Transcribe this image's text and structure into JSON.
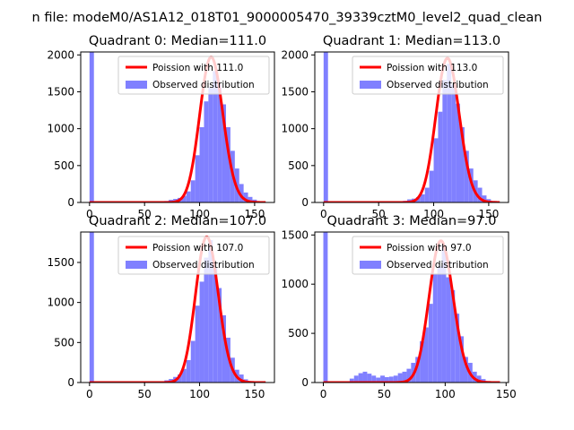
{
  "figure": {
    "suptitle": "n file: modeM0/AS1A12_018T01_9000005470_39339cztM0_level2_quad_clean"
  },
  "colors": {
    "histogram": "#8080ff",
    "poisson": "#ff0000",
    "background": "#ffffff"
  },
  "chart_data": [
    {
      "type": "bar",
      "title": "Quadrant 0: Median=111.0",
      "xlabel": "",
      "ylabel": "",
      "xlim": [
        -8,
        168
      ],
      "ylim": [
        0,
        2040
      ],
      "xticks": [
        0,
        50,
        100,
        150
      ],
      "yticks": [
        0,
        500,
        1000,
        1500,
        2000
      ],
      "grid": false,
      "legend": {
        "position": "top-right",
        "entries": [
          "Poission with 111.0",
          "Observed distribution"
        ]
      },
      "series": [
        {
          "name": "Observed distribution",
          "kind": "histogram",
          "bin_width": 4,
          "bins": [
            [
              0,
              2040
            ],
            [
              44,
              3
            ],
            [
              48,
              3
            ],
            [
              52,
              4
            ],
            [
              56,
              5
            ],
            [
              60,
              7
            ],
            [
              64,
              10
            ],
            [
              68,
              20
            ],
            [
              72,
              36
            ],
            [
              76,
              48
            ],
            [
              80,
              62
            ],
            [
              84,
              90
            ],
            [
              88,
              150
            ],
            [
              92,
              300
            ],
            [
              96,
              640
            ],
            [
              100,
              1020
            ],
            [
              104,
              1370
            ],
            [
              108,
              1560
            ],
            [
              112,
              1780
            ],
            [
              116,
              1600
            ],
            [
              120,
              1330
            ],
            [
              124,
              1020
            ],
            [
              128,
              700
            ],
            [
              132,
              460
            ],
            [
              136,
              250
            ],
            [
              140,
              135
            ],
            [
              144,
              75
            ],
            [
              148,
              38
            ],
            [
              152,
              18
            ],
            [
              156,
              8
            ]
          ]
        },
        {
          "name": "Poission with 111.0",
          "kind": "poisson-curve",
          "mean": 111.0,
          "scale": 1970,
          "x_range": [
            0,
            160
          ]
        }
      ]
    },
    {
      "type": "bar",
      "title": "Quadrant 1: Median=113.0",
      "xlabel": "",
      "ylabel": "",
      "xlim": [
        -8,
        168
      ],
      "ylim": [
        0,
        2040
      ],
      "xticks": [
        0,
        50,
        100,
        150
      ],
      "yticks": [
        0,
        500,
        1000,
        1500,
        2000
      ],
      "grid": false,
      "legend": {
        "position": "top-right",
        "entries": [
          "Poission with 113.0",
          "Observed distribution"
        ]
      },
      "series": [
        {
          "name": "Observed distribution",
          "kind": "histogram",
          "bin_width": 4,
          "bins": [
            [
              0,
              2040
            ],
            [
              52,
              3
            ],
            [
              56,
              4
            ],
            [
              60,
              6
            ],
            [
              64,
              8
            ],
            [
              68,
              12
            ],
            [
              72,
              22
            ],
            [
              76,
              42
            ],
            [
              80,
              52
            ],
            [
              84,
              72
            ],
            [
              88,
              110
            ],
            [
              92,
              200
            ],
            [
              96,
              430
            ],
            [
              100,
              870
            ],
            [
              104,
              1230
            ],
            [
              108,
              1660
            ],
            [
              112,
              1880
            ],
            [
              116,
              1600
            ],
            [
              120,
              1340
            ],
            [
              124,
              1020
            ],
            [
              128,
              700
            ],
            [
              132,
              460
            ],
            [
              136,
              300
            ],
            [
              140,
              200
            ],
            [
              144,
              95
            ],
            [
              148,
              45
            ],
            [
              152,
              20
            ],
            [
              156,
              8
            ]
          ]
        },
        {
          "name": "Poission with 113.0",
          "kind": "poisson-curve",
          "mean": 113.0,
          "scale": 1955,
          "x_range": [
            0,
            160
          ]
        }
      ]
    },
    {
      "type": "bar",
      "title": "Quadrant 2: Median=107.0",
      "xlabel": "",
      "ylabel": "",
      "xlim": [
        -8,
        168
      ],
      "ylim": [
        0,
        1880
      ],
      "xticks": [
        0,
        50,
        100,
        150
      ],
      "yticks": [
        0,
        500,
        1000,
        1500
      ],
      "grid": false,
      "legend": {
        "position": "top-right",
        "entries": [
          "Poission with 107.0",
          "Observed distribution"
        ]
      },
      "series": [
        {
          "name": "Observed distribution",
          "kind": "histogram",
          "bin_width": 4,
          "bins": [
            [
              0,
              1880
            ],
            [
              40,
              3
            ],
            [
              44,
              4
            ],
            [
              48,
              4
            ],
            [
              52,
              5
            ],
            [
              56,
              6
            ],
            [
              60,
              8
            ],
            [
              64,
              12
            ],
            [
              68,
              28
            ],
            [
              72,
              44
            ],
            [
              76,
              70
            ],
            [
              80,
              100
            ],
            [
              84,
              170
            ],
            [
              88,
              280
            ],
            [
              92,
              520
            ],
            [
              96,
              960
            ],
            [
              100,
              1260
            ],
            [
              104,
              1560
            ],
            [
              108,
              1780
            ],
            [
              112,
              1440
            ],
            [
              116,
              1180
            ],
            [
              120,
              840
            ],
            [
              124,
              560
            ],
            [
              128,
              310
            ],
            [
              132,
              160
            ],
            [
              136,
              100
            ],
            [
              140,
              40
            ],
            [
              144,
              18
            ],
            [
              148,
              8
            ]
          ]
        },
        {
          "name": "Poission with 107.0",
          "kind": "poisson-curve",
          "mean": 107.0,
          "scale": 1820,
          "x_range": [
            0,
            160
          ]
        }
      ]
    },
    {
      "type": "bar",
      "title": "Quadrant 3: Median=97.0",
      "xlabel": "",
      "ylabel": "",
      "xlim": [
        -7,
        152
      ],
      "ylim": [
        0,
        1530
      ],
      "xticks": [
        0,
        50,
        100,
        150
      ],
      "yticks": [
        0,
        500,
        1000,
        1500
      ],
      "grid": false,
      "legend": {
        "position": "top-right",
        "entries": [
          "Poission with 97.0",
          "Observed distribution"
        ]
      },
      "series": [
        {
          "name": "Observed distribution",
          "kind": "histogram",
          "bin_width": 3.6,
          "bins": [
            [
              0,
              1530
            ],
            [
              21.6,
              40
            ],
            [
              25.2,
              70
            ],
            [
              28.8,
              95
            ],
            [
              32.4,
              110
            ],
            [
              36,
              90
            ],
            [
              39.6,
              70
            ],
            [
              43.2,
              50
            ],
            [
              46.8,
              70
            ],
            [
              50.4,
              55
            ],
            [
              54,
              60
            ],
            [
              57.6,
              70
            ],
            [
              61.2,
              95
            ],
            [
              64.8,
              110
            ],
            [
              68.4,
              140
            ],
            [
              72,
              200
            ],
            [
              75.6,
              260
            ],
            [
              79.2,
              420
            ],
            [
              82.8,
              560
            ],
            [
              86.4,
              800
            ],
            [
              90,
              1100
            ],
            [
              93.6,
              1180
            ],
            [
              97.2,
              1400
            ],
            [
              100.8,
              1070
            ],
            [
              104.4,
              940
            ],
            [
              108,
              700
            ],
            [
              111.6,
              470
            ],
            [
              115.2,
              260
            ],
            [
              118.8,
              200
            ],
            [
              122.4,
              110
            ],
            [
              126,
              70
            ],
            [
              129.6,
              35
            ],
            [
              133.2,
              15
            ],
            [
              136.8,
              6
            ],
            [
              140.4,
              3
            ]
          ]
        },
        {
          "name": "Poission with 97.0",
          "kind": "poisson-curve",
          "mean": 97.0,
          "scale": 1440,
          "x_range": [
            0,
            145
          ]
        }
      ]
    }
  ]
}
